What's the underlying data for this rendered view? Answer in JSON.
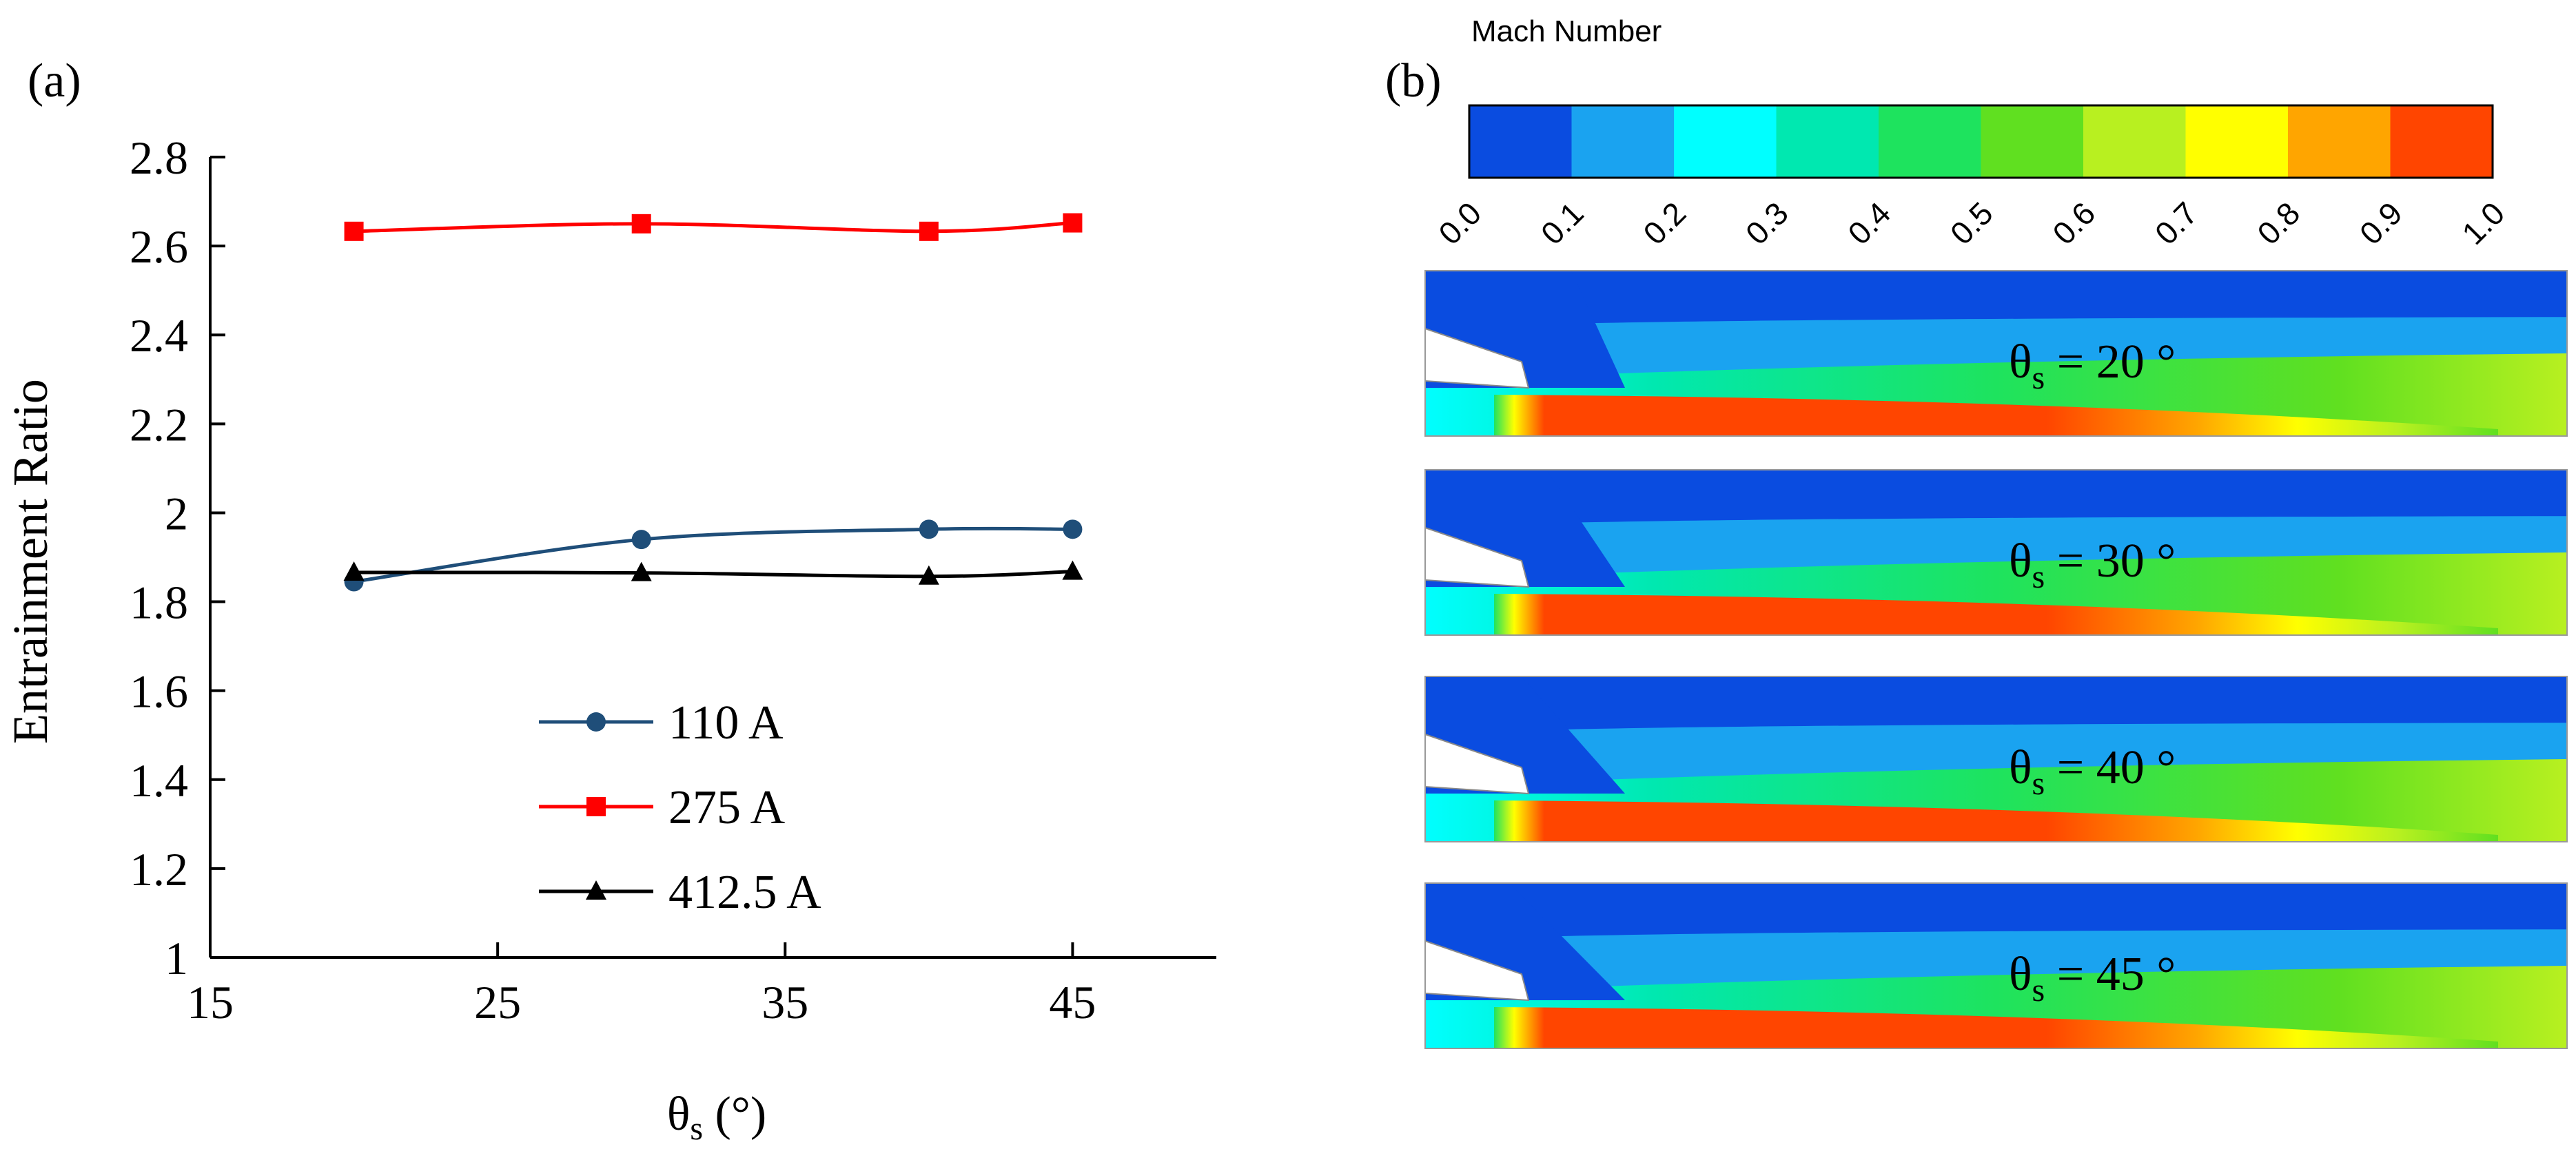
{
  "panel_a_label": "(a)",
  "panel_b_label": "(b)",
  "chart_data": {
    "type": "line",
    "title": "",
    "xlabel": "θs (°)",
    "ylabel": "Entrainment Ratio",
    "xlim": [
      15,
      50
    ],
    "ylim": [
      1,
      2.8
    ],
    "xticks": [
      15,
      25,
      35,
      45
    ],
    "yticks": [
      1,
      1.2,
      1.4,
      1.6,
      1.8,
      2,
      2.2,
      2.4,
      2.6,
      2.8
    ],
    "ytick_labels": [
      "1",
      "1.2",
      "1.4",
      "1.6",
      "1.8",
      "2",
      "2.2",
      "2.4",
      "2.6",
      "2.8"
    ],
    "x": [
      20,
      30,
      40,
      45
    ],
    "series": [
      {
        "name": "110 A",
        "values": [
          1.845,
          1.94,
          1.963,
          1.963
        ],
        "color": "#1f4e79",
        "marker": "circle"
      },
      {
        "name": "275 A",
        "values": [
          2.633,
          2.65,
          2.633,
          2.652
        ],
        "color": "#ff0000",
        "marker": "square"
      },
      {
        "name": "412.5 A",
        "values": [
          1.866,
          1.865,
          1.857,
          1.868
        ],
        "color": "#000000",
        "marker": "triangle"
      }
    ],
    "legend_position": "lower-middle"
  },
  "colorbar": {
    "title": "Mach Number",
    "ticks": [
      "0.0",
      "0.1",
      "0.2",
      "0.3",
      "0.4",
      "0.5",
      "0.6",
      "0.7",
      "0.8",
      "0.9",
      "1.0"
    ],
    "colors": [
      "#0a4ce0",
      "#1aa3f0",
      "#00ffff",
      "#00e8b0",
      "#1ee35e",
      "#60e020",
      "#b8f020",
      "#ffff00",
      "#ffa500",
      "#ff4500"
    ]
  },
  "contours": [
    {
      "theta": 20,
      "label_main": "θ",
      "label_sub": "s",
      "label_rest": " = 20 °"
    },
    {
      "theta": 30,
      "label_main": "θ",
      "label_sub": "s",
      "label_rest": " = 30 °"
    },
    {
      "theta": 40,
      "label_main": "θ",
      "label_sub": "s",
      "label_rest": " = 40 °"
    },
    {
      "theta": 45,
      "label_main": "θ",
      "label_sub": "s",
      "label_rest": " = 45 °"
    }
  ]
}
